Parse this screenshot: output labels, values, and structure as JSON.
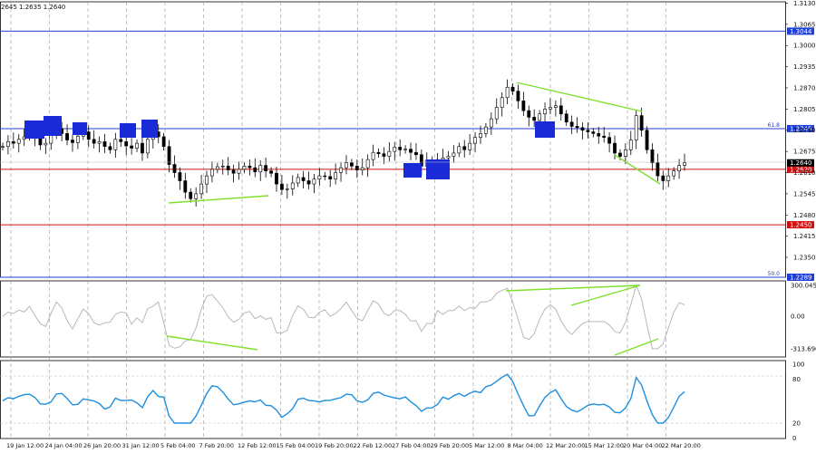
{
  "ohlc_header": "2645 1.2635 1.2640",
  "price_panel": {
    "ylim": [
      1.2289,
      1.3134
    ],
    "axis_ticks": [
      "1.3130",
      "1.3065",
      "1.3000",
      "1.2935",
      "1.2870",
      "1.2805",
      "1.2740",
      "1.2675",
      "1.2610",
      "1.2545",
      "1.2480",
      "1.2415",
      "1.2350"
    ],
    "levels": [
      {
        "value": 1.3044,
        "label": "1.3044",
        "color": "#1f3fd6"
      },
      {
        "value": 1.2745,
        "label": "1.2745",
        "color": "#1f3fd6",
        "fib_label": "61.8"
      },
      {
        "value": 1.262,
        "label": "1.2620",
        "color": "#d01010"
      },
      {
        "value": 1.245,
        "label": "1.2450",
        "color": "#d01010"
      },
      {
        "value": 1.2289,
        "label": "1.2289",
        "color": "#1f3fd6",
        "fib_label": "50.0"
      }
    ],
    "current": {
      "value": 1.264,
      "label": "1.2640"
    }
  },
  "cci_panel": {
    "ylim": [
      -313.696,
      300.0454
    ],
    "axis_ticks": [
      "300.0454",
      "0.00",
      "-313.696"
    ]
  },
  "rsi_panel": {
    "ylim": [
      20,
      100
    ],
    "axis_ticks": [
      "100",
      "80",
      "20",
      "0"
    ]
  },
  "time_axis": [
    "19 Jan 12:00",
    "24 Jan 04:00",
    "26 Jan 20:00",
    "31 Jan 12:00",
    "5 Feb 04:00",
    "7 Feb 20:00",
    "12 Feb 12:00",
    "15 Feb 04:00",
    "19 Feb 20:00",
    "22 Feb 12:00",
    "27 Feb 04:00",
    "29 Feb 20:00",
    "5 Mar 12:00",
    "8 Mar 04:00",
    "12 Mar 20:00",
    "15 Mar 12:00",
    "20 Mar 04:00",
    "22 Mar 20:00"
  ],
  "colors": {
    "grid": "#9a9a9a",
    "candle": "#000000",
    "trendline": "#7fe02a",
    "marker": "#1a2ad6",
    "cci_line": "#b8b8b8",
    "rsi_line": "#1e8fe0"
  },
  "chart_data": {
    "type": "candlestick",
    "close": [
      1.269,
      1.2705,
      1.27,
      1.2712,
      1.272,
      1.2735,
      1.2715,
      1.2695,
      1.27,
      1.2725,
      1.2745,
      1.273,
      1.271,
      1.2702,
      1.2722,
      1.2735,
      1.2712,
      1.27,
      1.2705,
      1.269,
      1.268,
      1.2712,
      1.2705,
      1.2692,
      1.2685,
      1.27,
      1.267,
      1.2712,
      1.2735,
      1.272,
      1.269,
      1.2635,
      1.261,
      1.2585,
      1.255,
      1.253,
      1.2545,
      1.2575,
      1.26,
      1.262,
      1.2628,
      1.263,
      1.2618,
      1.2608,
      1.262,
      1.263,
      1.2625,
      1.2612,
      1.2632,
      1.2615,
      1.2608,
      1.2575,
      1.2558,
      1.256,
      1.2578,
      1.2595,
      1.2585,
      1.2575,
      1.259,
      1.26,
      1.2598,
      1.259,
      1.261,
      1.2625,
      1.264,
      1.263,
      1.2618,
      1.2625,
      1.265,
      1.2672,
      1.2668,
      1.266,
      1.2675,
      1.2688,
      1.268,
      1.2682,
      1.2672,
      1.2665,
      1.263,
      1.2648,
      1.264,
      1.265,
      1.2655,
      1.266,
      1.267,
      1.269,
      1.268,
      1.27,
      1.2718,
      1.273,
      1.275,
      1.2775,
      1.281,
      1.284,
      1.2872,
      1.286,
      1.283,
      1.28,
      1.278,
      1.277,
      1.279,
      1.2805,
      1.281,
      1.2815,
      1.279,
      1.2765,
      1.2752,
      1.2748,
      1.274,
      1.2735,
      1.273,
      1.2722,
      1.2718,
      1.27,
      1.267,
      1.266,
      1.268,
      1.271,
      1.2785,
      1.274,
      1.268,
      1.264,
      1.26,
      1.2585,
      1.26,
      1.2615,
      1.2632,
      1.264
    ]
  }
}
